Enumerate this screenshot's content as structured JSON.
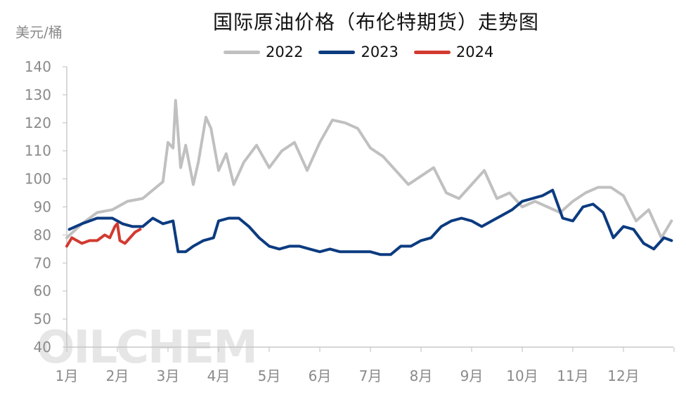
{
  "chart_data": {
    "type": "line",
    "title": "国际原油价格（布伦特期货）走势图",
    "ylabel": "美元/桶",
    "ylim": [
      40,
      140
    ],
    "yticks": [
      140,
      130,
      120,
      110,
      100,
      90,
      80,
      70,
      60,
      50,
      40
    ],
    "xticks": [
      "1月",
      "2月",
      "3月",
      "4月",
      "5月",
      "6月",
      "7月",
      "8月",
      "9月",
      "10月",
      "11月",
      "12月"
    ],
    "grid": false,
    "legend_position": "top",
    "watermark": "OILCHEM",
    "series": [
      {
        "name": "2022",
        "color": "#c0c0c0",
        "x_month": [
          0,
          0.3,
          0.6,
          0.9,
          1.2,
          1.5,
          1.7,
          1.9,
          2.0,
          2.1,
          2.15,
          2.25,
          2.35,
          2.5,
          2.6,
          2.75,
          2.85,
          3.0,
          3.15,
          3.3,
          3.5,
          3.75,
          4.0,
          4.25,
          4.5,
          4.75,
          5.0,
          5.25,
          5.5,
          5.75,
          6.0,
          6.25,
          6.5,
          6.75,
          7.0,
          7.25,
          7.5,
          7.75,
          8.0,
          8.25,
          8.5,
          8.75,
          9.0,
          9.25,
          9.5,
          9.75,
          10.0,
          10.25,
          10.5,
          10.75,
          11.0,
          11.25,
          11.5,
          11.75,
          11.95
        ],
        "values": [
          79,
          84,
          88,
          89,
          92,
          93,
          96,
          99,
          113,
          111,
          128,
          104,
          112,
          98,
          106,
          122,
          118,
          103,
          109,
          98,
          106,
          112,
          104,
          110,
          113,
          103,
          113,
          121,
          120,
          118,
          111,
          108,
          103,
          98,
          101,
          104,
          95,
          93,
          98,
          103,
          93,
          95,
          90,
          92,
          90,
          88,
          92,
          95,
          97,
          97,
          94,
          85,
          89,
          79,
          85
        ]
      },
      {
        "name": "2023",
        "color": "#0c3b80",
        "x_month": [
          0.05,
          0.3,
          0.6,
          0.9,
          1.1,
          1.3,
          1.5,
          1.7,
          1.9,
          2.1,
          2.2,
          2.35,
          2.5,
          2.7,
          2.9,
          3.0,
          3.2,
          3.4,
          3.6,
          3.8,
          4.0,
          4.2,
          4.4,
          4.6,
          4.8,
          5.0,
          5.2,
          5.4,
          5.6,
          5.8,
          6.0,
          6.2,
          6.4,
          6.6,
          6.8,
          7.0,
          7.2,
          7.4,
          7.6,
          7.8,
          8.0,
          8.2,
          8.4,
          8.6,
          8.8,
          9.0,
          9.2,
          9.4,
          9.6,
          9.8,
          10.0,
          10.2,
          10.4,
          10.6,
          10.8,
          11.0,
          11.2,
          11.4,
          11.6,
          11.8,
          11.95
        ],
        "values": [
          82,
          84,
          86,
          86,
          84,
          83,
          83,
          86,
          84,
          85,
          74,
          74,
          76,
          78,
          79,
          85,
          86,
          86,
          83,
          79,
          76,
          75,
          76,
          76,
          75,
          74,
          75,
          74,
          74,
          74,
          74,
          73,
          73,
          76,
          76,
          78,
          79,
          83,
          85,
          86,
          85,
          83,
          85,
          87,
          89,
          92,
          93,
          94,
          96,
          86,
          85,
          90,
          91,
          88,
          79,
          83,
          82,
          77,
          75,
          79,
          78
        ]
      },
      {
        "name": "2024",
        "color": "#d23a2f",
        "x_month": [
          0.0,
          0.1,
          0.2,
          0.3,
          0.45,
          0.6,
          0.75,
          0.85,
          0.95,
          1.0,
          1.05,
          1.15,
          1.25,
          1.35,
          1.45
        ],
        "values": [
          76,
          79,
          78,
          77,
          78,
          78,
          80,
          79,
          83,
          84,
          78,
          77,
          79,
          81,
          82
        ]
      }
    ]
  }
}
